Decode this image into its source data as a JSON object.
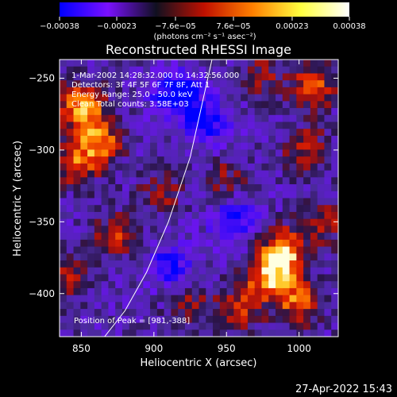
{
  "chart_data": {
    "type": "heatmap",
    "title": "Reconstructed RHESSI Image",
    "xlabel": "Heliocentric X (arcsec)",
    "ylabel": "Heliocentric Y (arcsec)",
    "xlim": [
      835,
      1027
    ],
    "ylim": [
      -430,
      -237
    ],
    "x_ticks": [
      {
        "value": 850,
        "label": "850"
      },
      {
        "value": 900,
        "label": "900"
      },
      {
        "value": 950,
        "label": "950"
      },
      {
        "value": 1000,
        "label": "1000"
      }
    ],
    "y_ticks": [
      {
        "value": -250,
        "label": "−250"
      },
      {
        "value": -300,
        "label": "−300"
      },
      {
        "value": -350,
        "label": "−350"
      },
      {
        "value": -400,
        "label": "−400"
      }
    ],
    "colorbar": {
      "range": [
        -0.00038,
        0.00038
      ],
      "ticks": [
        {
          "value": -0.00038,
          "label": "−0.00038"
        },
        {
          "value": -0.00023,
          "label": "−0.00023"
        },
        {
          "value": -7.6e-05,
          "label": "−7.6e−05"
        },
        {
          "value": 7.6e-05,
          "label": "7.6e−05"
        },
        {
          "value": 0.00023,
          "label": "0.00023"
        },
        {
          "value": 0.00038,
          "label": "0.00038"
        }
      ],
      "unit_label": "(photons cm⁻² s⁻¹ asec⁻²)",
      "colors": [
        "#0000ff",
        "#7a10ff",
        "#101020",
        "#c01000",
        "#ff8000",
        "#ffff40",
        "#ffffff"
      ]
    },
    "annotations": {
      "time_range": "1-Mar-2002 14:28:32.000 to 14:32:56.000",
      "detectors": "Detectors: 3F 4F 5F 6F 7F 8F, Att 1",
      "energy_range": "Energy Range: 25.0 - 50.0 keV",
      "method_counts": "Clean    Total counts: 3.58E+03",
      "peak_position": "Position of Peak = [981,-388]"
    },
    "peak": {
      "x": 981,
      "y": -388
    },
    "limb_curve": [
      [
        866,
        -430
      ],
      [
        880,
        -412
      ],
      [
        895,
        -385
      ],
      [
        910,
        -350
      ],
      [
        925,
        -305
      ],
      [
        940,
        -237
      ]
    ],
    "bright_regions": [
      {
        "x": 850,
        "y": -270,
        "level": 1.0
      },
      {
        "x": 862,
        "y": -295,
        "level": 0.85
      },
      {
        "x": 845,
        "y": -310,
        "level": 0.6
      },
      {
        "x": 980,
        "y": -388,
        "level": 1.0
      },
      {
        "x": 990,
        "y": -370,
        "level": 0.95
      },
      {
        "x": 1000,
        "y": -405,
        "level": 0.75
      },
      {
        "x": 960,
        "y": -410,
        "level": 0.55
      },
      {
        "x": 1010,
        "y": -255,
        "level": 0.7
      },
      {
        "x": 1005,
        "y": -300,
        "level": 0.55
      },
      {
        "x": 875,
        "y": -360,
        "level": 0.55
      },
      {
        "x": 905,
        "y": -330,
        "level": 0.4
      },
      {
        "x": 950,
        "y": -320,
        "level": 0.35
      },
      {
        "x": 925,
        "y": -410,
        "level": 0.45
      },
      {
        "x": 975,
        "y": -248,
        "level": 0.4
      },
      {
        "x": 840,
        "y": -390,
        "level": 0.5
      },
      {
        "x": 1020,
        "y": -350,
        "level": 0.45
      }
    ],
    "dim_regions": [
      {
        "x": 915,
        "y": -260,
        "level": -0.8
      },
      {
        "x": 935,
        "y": -280,
        "level": -0.7
      },
      {
        "x": 955,
        "y": -350,
        "level": -0.6
      },
      {
        "x": 910,
        "y": -380,
        "level": -0.55
      }
    ]
  },
  "footer": {
    "date": "27-Apr-2022 15:43"
  }
}
